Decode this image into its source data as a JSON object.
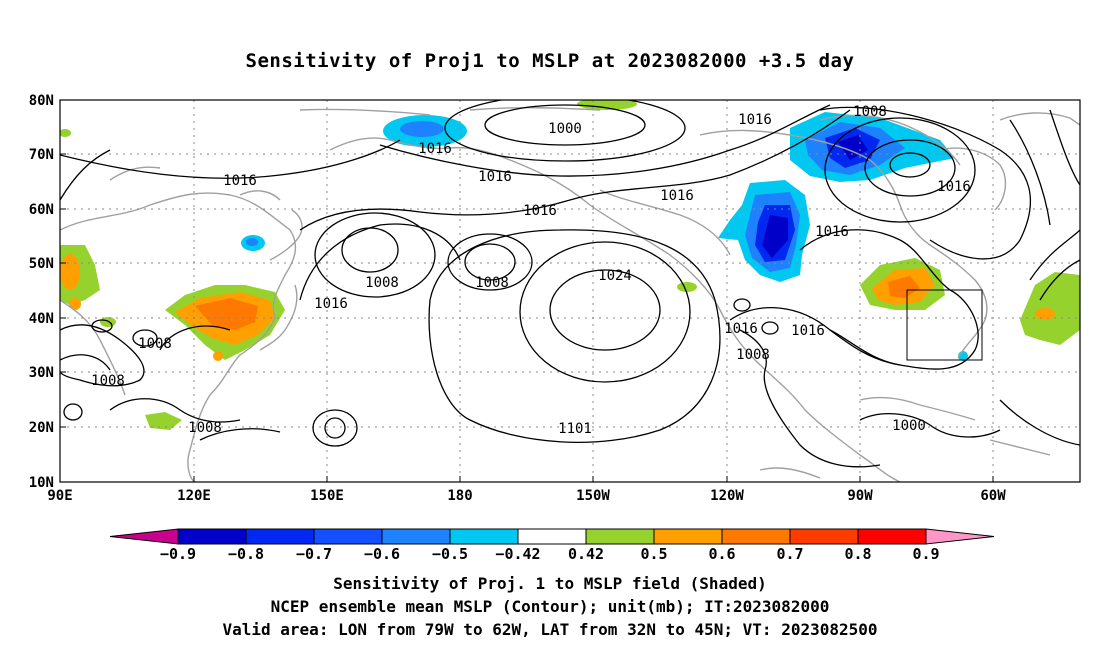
{
  "title": "Sensitivity of Proj1 to MSLP at 2023082000 +3.5 day",
  "lat_labels": [
    "80N",
    "70N",
    "60N",
    "50N",
    "40N",
    "30N",
    "20N",
    "10N"
  ],
  "lon_labels": [
    "90E",
    "120E",
    "150E",
    "180",
    "150W",
    "120W",
    "90W",
    "60W"
  ],
  "contour_labels": [
    "1000",
    "1008",
    "1016",
    "1016",
    "1016",
    "1016",
    "1016",
    "1016",
    "1016",
    "1016",
    "1016",
    "1016",
    "1024",
    "1008",
    "1008",
    "1008",
    "1008",
    "1008",
    "1008",
    "1000",
    "1016",
    "1101"
  ],
  "colorbar": {
    "levels": [
      "-0.9",
      "-0.8",
      "-0.7",
      "-0.6",
      "-0.5",
      "-0.42",
      "0.42",
      "0.5",
      "0.6",
      "0.7",
      "0.8",
      "0.9"
    ],
    "colors": [
      "#c8008c",
      "#0000c8",
      "#0028f0",
      "#1450ff",
      "#1e82ff",
      "#00c8f0",
      "#ffffff",
      "#96d22d",
      "#ffa000",
      "#ff7800",
      "#ff3c00",
      "#ff0000",
      "#ff96c8"
    ]
  },
  "caption": {
    "line1": "Sensitivity of Proj. 1 to MSLP field (Shaded)",
    "line2": "NCEP ensemble mean MSLP (Contour); unit(mb); IT:2023082000",
    "line3": "Valid area: LON from 79W to 62W, LAT from 32N to 45N; VT: 2023082500"
  }
}
